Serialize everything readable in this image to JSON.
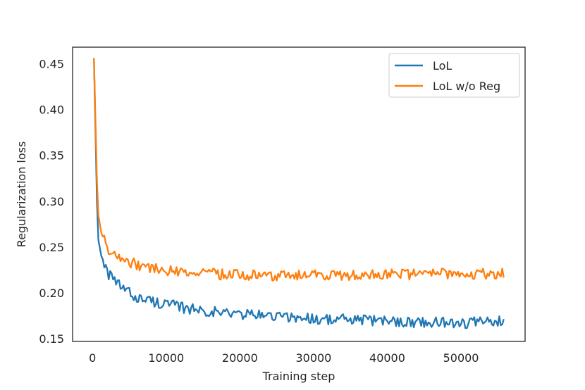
{
  "chart_data": {
    "type": "line",
    "title": "",
    "xlabel": "Training step",
    "ylabel": "Regularization loss",
    "xlim": [
      -2700,
      58700
    ],
    "ylim": [
      0.147,
      0.468
    ],
    "grid": false,
    "legend_position": "top-right",
    "xticks": [
      {
        "value": 0,
        "label": "0"
      },
      {
        "value": 10000,
        "label": "10000"
      },
      {
        "value": 20000,
        "label": "20000"
      },
      {
        "value": 30000,
        "label": "30000"
      },
      {
        "value": 40000,
        "label": "40000"
      },
      {
        "value": 50000,
        "label": "50000"
      }
    ],
    "yticks": [
      {
        "value": 0.15,
        "label": "0.15"
      },
      {
        "value": 0.2,
        "label": "0.20"
      },
      {
        "value": 0.25,
        "label": "0.25"
      },
      {
        "value": 0.3,
        "label": "0.30"
      },
      {
        "value": 0.35,
        "label": "0.35"
      },
      {
        "value": 0.4,
        "label": "0.40"
      },
      {
        "value": 0.45,
        "label": "0.45"
      }
    ],
    "series": [
      {
        "name": "LoL",
        "color": "#1f77b4",
        "x": [
          200,
          700,
          1200,
          1700,
          2200,
          3000,
          4000,
          5000,
          6000,
          8000,
          10000,
          12000,
          14000,
          16000,
          18000,
          20000,
          22000,
          24000,
          26000,
          28000,
          30000,
          32000,
          34000,
          36000,
          38000,
          40000,
          42000,
          44000,
          46000,
          48000,
          50000,
          52000,
          54000,
          55800
        ],
        "y": [
          0.456,
          0.262,
          0.24,
          0.231,
          0.22,
          0.212,
          0.206,
          0.2,
          0.195,
          0.191,
          0.188,
          0.184,
          0.182,
          0.18,
          0.178,
          0.177,
          0.176,
          0.175,
          0.174,
          0.173,
          0.172,
          0.171,
          0.171,
          0.17,
          0.17,
          0.169,
          0.169,
          0.168,
          0.168,
          0.168,
          0.167,
          0.168,
          0.168,
          0.17
        ]
      },
      {
        "name": "LoL w/o Reg",
        "color": "#ff7f0e",
        "x": [
          200,
          700,
          1200,
          1700,
          2200,
          3000,
          4000,
          5000,
          6000,
          8000,
          10000,
          12000,
          14000,
          16000,
          18000,
          20000,
          22000,
          24000,
          26000,
          28000,
          30000,
          32000,
          34000,
          36000,
          38000,
          40000,
          42000,
          44000,
          46000,
          48000,
          50000,
          52000,
          54000,
          55800
        ],
        "y": [
          0.456,
          0.29,
          0.265,
          0.256,
          0.248,
          0.242,
          0.237,
          0.234,
          0.231,
          0.227,
          0.225,
          0.223,
          0.222,
          0.221,
          0.22,
          0.22,
          0.219,
          0.219,
          0.219,
          0.219,
          0.219,
          0.219,
          0.219,
          0.219,
          0.219,
          0.22,
          0.22,
          0.22,
          0.22,
          0.221,
          0.221,
          0.221,
          0.221,
          0.222
        ]
      }
    ]
  }
}
